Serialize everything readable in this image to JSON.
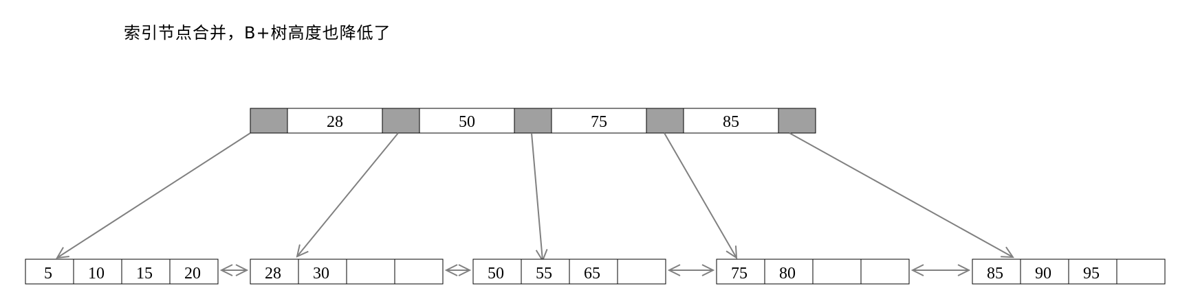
{
  "caption": "索引节点合并，B+树高度也降低了",
  "root": {
    "keys": [
      "28",
      "50",
      "75",
      "85"
    ]
  },
  "leaves": [
    {
      "keys": [
        "5",
        "10",
        "15",
        "20"
      ]
    },
    {
      "keys": [
        "28",
        "30",
        "",
        ""
      ]
    },
    {
      "keys": [
        "50",
        "55",
        "65",
        ""
      ]
    },
    {
      "keys": [
        "75",
        "80",
        "",
        ""
      ]
    },
    {
      "keys": [
        "85",
        "90",
        "95",
        ""
      ]
    }
  ],
  "colors": {
    "pointer_fill": "#a0a0a0",
    "cell_fill": "#ffffff",
    "border": "#000000",
    "arrow": "#808080"
  }
}
